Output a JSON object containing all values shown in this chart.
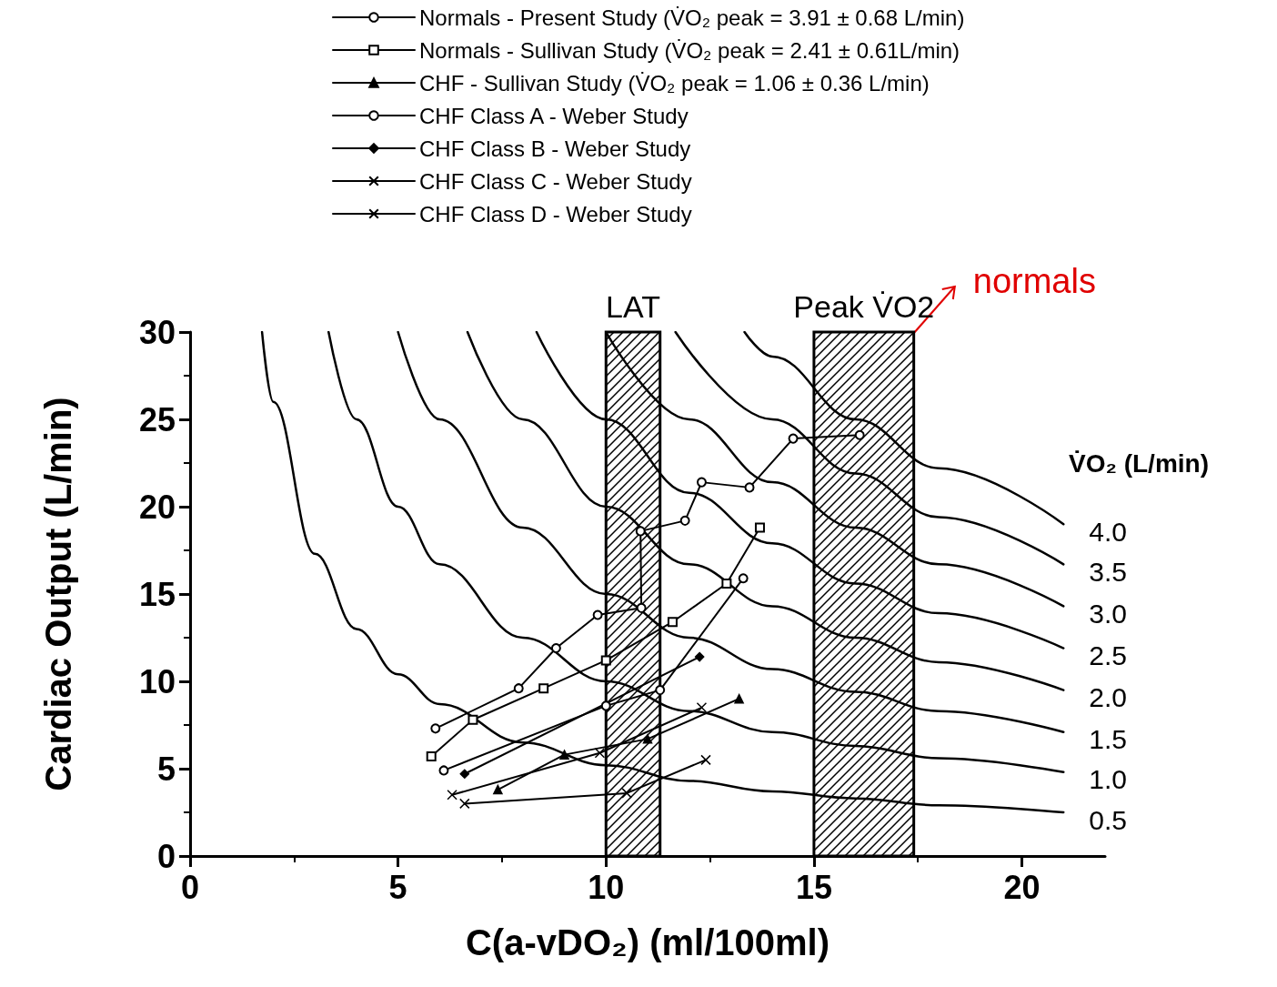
{
  "chart_data": {
    "type": "line",
    "xlabel": "C(a-vDO₂) (ml/100ml)",
    "ylabel": "Cardiac Output (L/min)",
    "xlim": [
      0,
      22
    ],
    "xticks": [
      0,
      5,
      10,
      15,
      20
    ],
    "ylim": [
      0,
      30
    ],
    "yticks": [
      0,
      5,
      10,
      15,
      20,
      25,
      30
    ],
    "grid": false,
    "legend": "top",
    "bands": [
      {
        "axis": "x",
        "from": 10,
        "to": 11.3,
        "label": "LAT"
      },
      {
        "axis": "x",
        "from": 15,
        "to": 17.4,
        "label": "Peak V̇O2"
      }
    ],
    "annotations": [
      "V̇O₂ (L/min)",
      "normals"
    ],
    "series": [
      {
        "name": "Normals - Present Study (V̇O₂ peak = 3.91 ± 0.68 L/min)",
        "color": "#000000",
        "marker": "circle",
        "x": [
          5.9,
          7.9,
          8.8,
          9.8,
          10.85,
          10.83,
          11.9,
          12.3,
          13.45,
          14.5,
          16.1
        ],
        "values": [
          7.3,
          9.6,
          11.9,
          13.8,
          14.2,
          18.6,
          19.2,
          21.4,
          21.1,
          23.9,
          24.1
        ]
      },
      {
        "name": "Normals - Sullivan Study (V̇O₂ peak = 2.41 ± 0.61L/min)",
        "color": "#000000",
        "marker": "square",
        "x": [
          5.8,
          6.8,
          8.5,
          10.0,
          11.6,
          12.9,
          13.7
        ],
        "values": [
          5.7,
          7.8,
          9.6,
          11.2,
          13.4,
          15.6,
          18.8
        ]
      },
      {
        "name": "CHF - Sullivan Study (V̇O₂ peak = 1.06 ± 0.36 L/min)",
        "color": "#000000",
        "marker": "triangle",
        "x": [
          7.4,
          9.0,
          11.0,
          13.2
        ],
        "values": [
          3.8,
          5.8,
          6.7,
          9.0
        ]
      },
      {
        "name": "CHF Class A - Weber Study",
        "color": "#000000",
        "marker": "circle",
        "x": [
          6.1,
          10.0,
          11.3,
          13.3
        ],
        "values": [
          4.9,
          8.6,
          9.5,
          15.9
        ]
      },
      {
        "name": "CHF Class B - Weber Study",
        "color": "#000000",
        "marker": "diamond",
        "x": [
          6.6,
          12.25
        ],
        "values": [
          4.7,
          11.4
        ]
      },
      {
        "name": "CHF Class C - Weber Study",
        "color": "#000000",
        "marker": "cross",
        "x": [
          6.3,
          9.85,
          12.3
        ],
        "values": [
          3.5,
          5.9,
          8.5
        ]
      },
      {
        "name": "CHF Class D - Weber Study",
        "color": "#000000",
        "marker": "cross",
        "x": [
          6.6,
          10.5,
          12.4
        ],
        "values": [
          3.0,
          3.6,
          5.5
        ]
      },
      {
        "name": "4.0",
        "color": "#000000",
        "marker": "none",
        "x": [
          13.33,
          14,
          16,
          18,
          21
        ],
        "values": [
          30,
          28.6,
          25,
          22.2,
          19
        ]
      },
      {
        "name": "3.5",
        "color": "#000000",
        "marker": "none",
        "x": [
          11.67,
          14,
          16,
          18,
          21
        ],
        "values": [
          30,
          25,
          21.9,
          19.4,
          16.7
        ]
      },
      {
        "name": "3.0",
        "color": "#000000",
        "marker": "none",
        "x": [
          10,
          12,
          14,
          16,
          18,
          21
        ],
        "values": [
          30,
          25,
          21.4,
          18.8,
          16.7,
          14.3
        ]
      },
      {
        "name": "2.5",
        "color": "#000000",
        "marker": "none",
        "x": [
          8.33,
          10,
          12,
          14,
          16,
          18,
          21
        ],
        "values": [
          30,
          25,
          20.8,
          17.9,
          15.6,
          13.9,
          11.9
        ]
      },
      {
        "name": "2.0",
        "color": "#000000",
        "marker": "none",
        "x": [
          6.67,
          8,
          10,
          12,
          14,
          16,
          18,
          21
        ],
        "values": [
          30,
          25,
          20,
          16.7,
          14.3,
          12.5,
          11.1,
          9.5
        ]
      },
      {
        "name": "1.5",
        "color": "#000000",
        "marker": "none",
        "x": [
          5,
          6,
          8,
          10,
          12,
          14,
          16,
          18,
          21
        ],
        "values": [
          30,
          25,
          18.8,
          15,
          12.5,
          10.7,
          9.4,
          8.3,
          7.1
        ]
      },
      {
        "name": "1.0",
        "color": "#000000",
        "marker": "none",
        "x": [
          3.33,
          4,
          5,
          6,
          8,
          10,
          12,
          14,
          16,
          18,
          21
        ],
        "values": [
          30,
          25,
          20,
          16.7,
          12.5,
          10,
          8.3,
          7.1,
          6.3,
          5.6,
          4.8
        ]
      },
      {
        "name": "0.5",
        "color": "#000000",
        "marker": "none",
        "x": [
          1.73,
          2,
          3,
          4,
          5,
          6,
          8,
          10,
          12,
          14,
          16,
          18,
          21
        ],
        "values": [
          30,
          26,
          17.3,
          13,
          10.4,
          8.7,
          6.5,
          5.2,
          4.3,
          3.7,
          3.3,
          2.9,
          2.5
        ]
      }
    ]
  }
}
